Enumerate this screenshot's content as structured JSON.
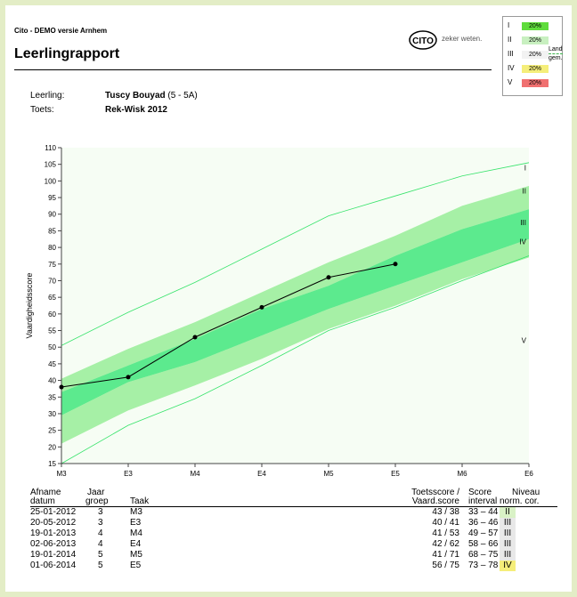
{
  "header": {
    "org": "Cito - DEMO versie Arnhem",
    "title": "Leerlingrapport",
    "logo_text": "CITO",
    "logo_slogan": "zeker weten."
  },
  "legend": {
    "levels": [
      "I",
      "II",
      "III",
      "IV",
      "V"
    ],
    "percentages": [
      "20%",
      "20%",
      "20%",
      "20%",
      "20%"
    ],
    "level_colors": [
      "#5fdc3c",
      "#c8f0c0",
      "#f2f2f2",
      "#f5ee7a",
      "#f07070"
    ],
    "line_label_1": "Land",
    "line_label_2": "gem."
  },
  "student": {
    "name_label": "Leerling:",
    "name": "Tuscy Bouyad",
    "group": "(5 - 5A)",
    "test_label": "Toets:",
    "test": "Rek-Wisk 2012"
  },
  "chart_data": {
    "type": "line",
    "ylabel": "Vaardigheidsscore",
    "ylim": [
      15,
      110
    ],
    "yticks": [
      15,
      20,
      25,
      30,
      35,
      40,
      45,
      50,
      55,
      60,
      65,
      70,
      75,
      80,
      85,
      90,
      95,
      100,
      105,
      110
    ],
    "x": [
      "M3",
      "E3",
      "M4",
      "E4",
      "M5",
      "E5",
      "M6",
      "E6"
    ],
    "band_labels": [
      "I",
      "II",
      "III",
      "IV",
      "V"
    ],
    "bands": {
      "top": [
        50.5,
        60.5,
        69.5,
        79.5,
        89.5,
        95.5,
        101.5,
        105.5
      ],
      "p80": [
        40.5,
        49.5,
        57.5,
        66.5,
        75.5,
        83.5,
        92.5,
        98.5
      ],
      "p60": [
        36.5,
        44.5,
        52.5,
        61.5,
        68.5,
        77.5,
        85.5,
        91.5
      ],
      "p40": [
        29.5,
        39.5,
        45.5,
        53.5,
        61.5,
        68.5,
        75.5,
        82.5
      ],
      "p20": [
        21.0,
        31.0,
        38.5,
        46.5,
        55.5,
        62.5,
        70.5,
        77.0
      ],
      "bottom": [
        15.0,
        26.5,
        34.5,
        44.5,
        55.0,
        62.0,
        70.0,
        77.5
      ]
    },
    "band_colors": [
      "#f6fdf4",
      "#c6f7c6",
      "#a6f0a6",
      "#5cea8e",
      "#a6f0a6",
      "#c6f7c6",
      "#f6fdf4"
    ],
    "student_series": {
      "x": [
        "M3",
        "E3",
        "M4",
        "E4",
        "M5",
        "E5"
      ],
      "values": [
        38,
        41,
        53,
        62,
        71,
        75
      ]
    }
  },
  "table": {
    "headers": {
      "date_1": "Afname",
      "date_2": "datum",
      "year_1": "Jaar",
      "year_2": "groep",
      "task": "Taak",
      "score_1": "Toetsscore /",
      "score_2": "Vaard.score",
      "interval_1": "Score",
      "interval_2": "interval",
      "level_1": "Niveau",
      "level_2": "norm.  cor."
    },
    "rows": [
      {
        "date": "25-01-2012",
        "group": "3",
        "task": "M3",
        "score": "43 / 38",
        "interval": "33 – 44",
        "level": "II",
        "level_color": "#d9f2c6"
      },
      {
        "date": "20-05-2012",
        "group": "3",
        "task": "E3",
        "score": "40 / 41",
        "interval": "36 – 46",
        "level": "III",
        "level_color": "#e8e8e8"
      },
      {
        "date": "19-01-2013",
        "group": "4",
        "task": "M4",
        "score": "41 / 53",
        "interval": "49 – 57",
        "level": "III",
        "level_color": "#e8e8e8"
      },
      {
        "date": "02-06-2013",
        "group": "4",
        "task": "E4",
        "score": "42 / 62",
        "interval": "58 – 66",
        "level": "III",
        "level_color": "#e8e8e8"
      },
      {
        "date": "19-01-2014",
        "group": "5",
        "task": "M5",
        "score": "41 / 71",
        "interval": "68 – 75",
        "level": "III",
        "level_color": "#e8e8e8"
      },
      {
        "date": "01-06-2014",
        "group": "5",
        "task": "E5",
        "score": "56 / 75",
        "interval": "73 – 78",
        "level": "IV",
        "level_color": "#f5ee7a"
      }
    ]
  }
}
